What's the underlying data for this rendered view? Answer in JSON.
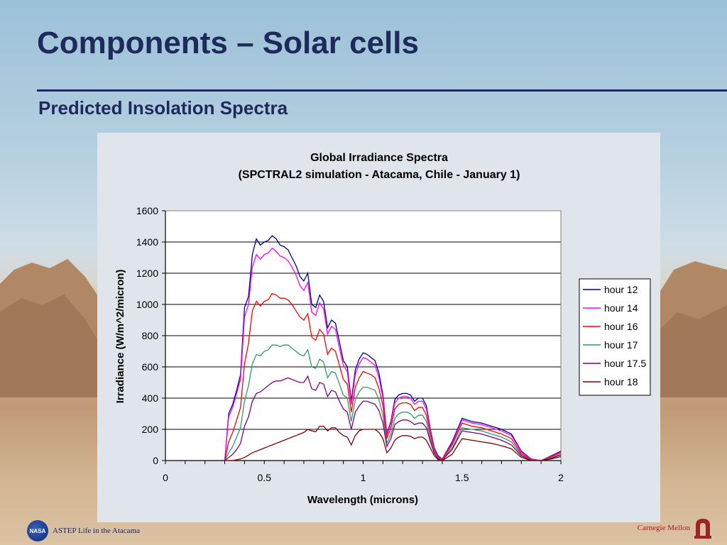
{
  "slide": {
    "title": "Components – Solar cells",
    "subtitle": "Predicted Insolation Spectra"
  },
  "footer": {
    "left_logo": "NASA",
    "left_text": "ASTEP Life in the Atacama",
    "right_text": "Carnegie Mellon",
    "right_logo_icon": "robotics-institute-logo-icon"
  },
  "colors": {
    "title": "#1f2a5c",
    "chart_bg": "#dfe5ea",
    "hour12": "#000080",
    "hour14": "#ff00ff",
    "hour16": "#ff0000",
    "hour17": "#339966",
    "hour17_5": "#800080",
    "hour18": "#800000"
  },
  "chart_data": {
    "type": "line",
    "title": "Global Irradiance Spectra",
    "subtitle": "(SPCTRAL2 simulation - Atacama, Chile - January 1)",
    "xlabel": "Wavelength (microns)",
    "ylabel": "Irradiance (W/m^2/micron)",
    "xlim": [
      0,
      2
    ],
    "ylim": [
      0,
      1600
    ],
    "x_ticks": [
      "0",
      "0.5",
      "1",
      "1.5",
      "2"
    ],
    "y_ticks": [
      "0",
      "200",
      "400",
      "600",
      "800",
      "1000",
      "1200",
      "1400",
      "1600"
    ],
    "grid": "horizontal",
    "legend_position": "right",
    "x": [
      0.3,
      0.32,
      0.34,
      0.36,
      0.38,
      0.4,
      0.42,
      0.44,
      0.46,
      0.48,
      0.5,
      0.52,
      0.54,
      0.56,
      0.58,
      0.6,
      0.62,
      0.64,
      0.66,
      0.68,
      0.7,
      0.72,
      0.74,
      0.76,
      0.78,
      0.8,
      0.82,
      0.84,
      0.86,
      0.88,
      0.9,
      0.92,
      0.94,
      0.96,
      0.98,
      1.0,
      1.02,
      1.04,
      1.06,
      1.08,
      1.1,
      1.12,
      1.14,
      1.16,
      1.18,
      1.2,
      1.22,
      1.24,
      1.26,
      1.28,
      1.3,
      1.32,
      1.34,
      1.36,
      1.38,
      1.4,
      1.45,
      1.5,
      1.55,
      1.6,
      1.65,
      1.7,
      1.75,
      1.8,
      1.85,
      1.9,
      1.95,
      2.0
    ],
    "series": [
      {
        "name": "hour 12",
        "color": "#000080",
        "values": [
          0,
          300,
          360,
          450,
          550,
          980,
          1050,
          1320,
          1420,
          1380,
          1400,
          1410,
          1440,
          1420,
          1380,
          1370,
          1350,
          1300,
          1250,
          1180,
          1150,
          1200,
          1000,
          980,
          1060,
          1020,
          850,
          900,
          880,
          760,
          640,
          600,
          380,
          580,
          650,
          690,
          680,
          660,
          640,
          560,
          420,
          170,
          250,
          390,
          420,
          430,
          430,
          420,
          380,
          400,
          400,
          350,
          200,
          80,
          30,
          10,
          120,
          270,
          250,
          240,
          220,
          200,
          170,
          60,
          10,
          0,
          30,
          60
        ]
      },
      {
        "name": "hour 14",
        "color": "#ff00ff",
        "values": [
          0,
          280,
          340,
          430,
          520,
          920,
          1000,
          1240,
          1320,
          1290,
          1320,
          1330,
          1360,
          1340,
          1310,
          1300,
          1280,
          1240,
          1190,
          1120,
          1090,
          1140,
          950,
          930,
          1010,
          970,
          810,
          860,
          840,
          720,
          610,
          570,
          360,
          550,
          620,
          660,
          650,
          630,
          610,
          530,
          400,
          160,
          240,
          370,
          400,
          410,
          410,
          400,
          360,
          380,
          380,
          330,
          190,
          75,
          25,
          8,
          110,
          260,
          240,
          230,
          210,
          190,
          160,
          55,
          8,
          0,
          28,
          55
        ]
      },
      {
        "name": "hour 16",
        "color": "#ff0000",
        "values": [
          0,
          120,
          180,
          260,
          340,
          620,
          750,
          960,
          1020,
          990,
          1020,
          1030,
          1070,
          1060,
          1040,
          1040,
          1030,
          1000,
          960,
          920,
          900,
          940,
          790,
          770,
          840,
          810,
          680,
          720,
          700,
          610,
          520,
          490,
          310,
          470,
          530,
          570,
          560,
          550,
          530,
          460,
          350,
          140,
          210,
          330,
          360,
          370,
          370,
          360,
          320,
          340,
          340,
          290,
          170,
          65,
          20,
          5,
          100,
          240,
          220,
          210,
          190,
          170,
          140,
          45,
          5,
          0,
          25,
          50
        ]
      },
      {
        "name": "hour 17",
        "color": "#339966",
        "values": [
          0,
          50,
          90,
          150,
          210,
          380,
          480,
          620,
          680,
          670,
          700,
          710,
          740,
          740,
          730,
          740,
          740,
          720,
          700,
          680,
          670,
          710,
          600,
          590,
          650,
          630,
          530,
          570,
          560,
          490,
          420,
          400,
          250,
          390,
          440,
          470,
          470,
          460,
          450,
          390,
          290,
          110,
          170,
          270,
          300,
          310,
          310,
          300,
          270,
          290,
          290,
          250,
          140,
          55,
          15,
          3,
          80,
          210,
          200,
          190,
          170,
          150,
          120,
          35,
          3,
          0,
          20,
          40
        ]
      },
      {
        "name": "hour 17.5",
        "color": "#800080",
        "values": [
          0,
          20,
          40,
          70,
          110,
          220,
          280,
          380,
          430,
          440,
          460,
          480,
          500,
          510,
          510,
          520,
          530,
          520,
          510,
          500,
          500,
          540,
          460,
          450,
          500,
          490,
          410,
          450,
          440,
          380,
          330,
          310,
          200,
          310,
          350,
          380,
          380,
          370,
          360,
          320,
          240,
          90,
          140,
          230,
          250,
          260,
          260,
          250,
          230,
          240,
          240,
          210,
          120,
          45,
          10,
          2,
          70,
          190,
          180,
          170,
          150,
          130,
          100,
          30,
          2,
          0,
          15,
          35
        ]
      },
      {
        "name": "hour 18",
        "color": "#800000",
        "values": [
          0,
          0,
          0,
          5,
          10,
          20,
          35,
          50,
          60,
          70,
          80,
          90,
          100,
          110,
          120,
          130,
          140,
          150,
          160,
          170,
          180,
          200,
          190,
          185,
          220,
          220,
          190,
          210,
          210,
          180,
          160,
          150,
          100,
          160,
          190,
          200,
          200,
          200,
          200,
          180,
          140,
          50,
          80,
          130,
          150,
          160,
          160,
          155,
          140,
          150,
          150,
          130,
          80,
          30,
          5,
          0,
          40,
          140,
          130,
          120,
          110,
          95,
          75,
          20,
          0,
          0,
          10,
          25
        ]
      }
    ]
  }
}
